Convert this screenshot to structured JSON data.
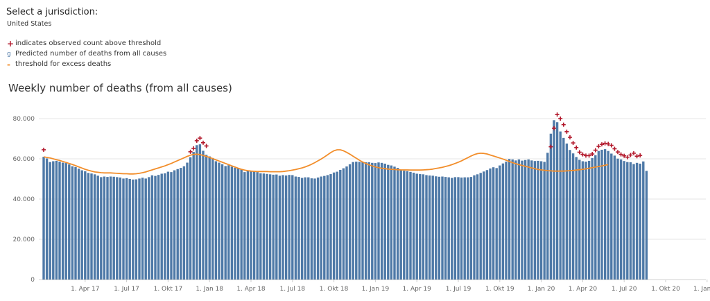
{
  "selector": {
    "title": "Select a jurisdiction:",
    "value": "United States"
  },
  "legend": {
    "items": [
      {
        "symbol": "+",
        "label": "indicates observed count above threshold"
      },
      {
        "symbol": "g",
        "label": "Predicted number of deaths from all causes"
      },
      {
        "symbol": "-",
        "label": "threshold for excess deaths"
      }
    ]
  },
  "colors": {
    "bar": "#4e79a7",
    "threshold": "#f28e2b",
    "marker": "#b2182b"
  },
  "chart_data": {
    "type": "bar",
    "title": "Weekly number of deaths (from all causes)",
    "xlabel": "",
    "ylabel": "",
    "ylim": [
      0,
      88000
    ],
    "yticks": [
      {
        "value": 0,
        "label": "0"
      },
      {
        "value": 20000,
        "label": "20.000"
      },
      {
        "value": 40000,
        "label": "40.000"
      },
      {
        "value": 60000,
        "label": "60.000"
      },
      {
        "value": 80000,
        "label": "80.000"
      }
    ],
    "xticks": [
      {
        "week": 13,
        "label": "1. Apr 17"
      },
      {
        "week": 26,
        "label": "1. Jul 17"
      },
      {
        "week": 39,
        "label": "1. Okt 17"
      },
      {
        "week": 52,
        "label": "1. Jan 18"
      },
      {
        "week": 65,
        "label": "1. Apr 18"
      },
      {
        "week": 78,
        "label": "1. Jul 18"
      },
      {
        "week": 91,
        "label": "1. Okt 18"
      },
      {
        "week": 104,
        "label": "1. Jan 19"
      },
      {
        "week": 117,
        "label": "1. Apr 19"
      },
      {
        "week": 130,
        "label": "1. Jul 19"
      },
      {
        "week": 143,
        "label": "1. Okt 19"
      },
      {
        "week": 156,
        "label": "1. Jan 20"
      },
      {
        "week": 169,
        "label": "1. Apr 20"
      },
      {
        "week": 182,
        "label": "1. Jul 20"
      },
      {
        "week": 195,
        "label": "1. Okt 20"
      },
      {
        "week": 208,
        "label": "1. Jan 21"
      }
    ],
    "series": [
      {
        "type": "bar",
        "values": [
          61000,
          60200,
          58400,
          58800,
          59000,
          58600,
          58100,
          57900,
          57200,
          56300,
          55900,
          55100,
          54300,
          53800,
          53000,
          52700,
          52300,
          51600,
          50900,
          51200,
          51000,
          51200,
          51100,
          50900,
          50700,
          50200,
          50400,
          50000,
          49700,
          49800,
          50200,
          50600,
          50200,
          50900,
          51800,
          51500,
          52000,
          52600,
          52800,
          53600,
          53400,
          54300,
          54900,
          55500,
          56300,
          58100,
          60800,
          63400,
          66800,
          67200,
          64000,
          62000,
          61200,
          60400,
          58800,
          58100,
          57300,
          56400,
          56800,
          56100,
          55600,
          55300,
          54700,
          53400,
          53900,
          54100,
          53800,
          53400,
          52800,
          52700,
          52500,
          52300,
          52100,
          52200,
          51600,
          51900,
          51700,
          52000,
          51900,
          51200,
          51000,
          50500,
          50800,
          50800,
          50300,
          50200,
          50700,
          51200,
          51500,
          51900,
          52400,
          53200,
          53600,
          54500,
          55300,
          56200,
          57300,
          58400,
          58600,
          58500,
          58400,
          58300,
          58300,
          58000,
          57900,
          58200,
          58000,
          57600,
          57000,
          56700,
          56100,
          55500,
          54600,
          54100,
          53900,
          53500,
          53100,
          52600,
          52400,
          52300,
          51900,
          51700,
          51600,
          51300,
          51100,
          51200,
          51000,
          50800,
          50500,
          50900,
          50900,
          50700,
          50800,
          50800,
          51000,
          51800,
          52300,
          53000,
          53700,
          54400,
          55200,
          55800,
          55400,
          56700,
          57700,
          58600,
          59900,
          59700,
          59200,
          59700,
          59100,
          59400,
          59700,
          59200,
          58900,
          59000,
          58800,
          58500,
          63000,
          72500,
          79200,
          78200,
          73600,
          70400,
          67600,
          64400,
          62700,
          60900,
          59500,
          58800,
          58600,
          59000,
          60400,
          61800,
          63900,
          64500,
          64800,
          63900,
          62600,
          61600,
          60100,
          59700,
          58900,
          58400,
          58300,
          57400,
          58000,
          57600,
          58700,
          54000
        ]
      },
      {
        "type": "line",
        "name": "threshold for excess deaths",
        "values": [
          61000,
          60700,
          60400,
          60000,
          59600,
          59200,
          58700,
          58200,
          57700,
          57200,
          56600,
          56000,
          55400,
          54800,
          54300,
          53900,
          53500,
          53300,
          53100,
          53000,
          53000,
          53000,
          52900,
          52800,
          52700,
          52600,
          52600,
          52500,
          52500,
          52600,
          52800,
          53100,
          53500,
          54000,
          54500,
          55000,
          55500,
          56000,
          56500,
          57100,
          57700,
          58400,
          59100,
          59800,
          60500,
          61200,
          61800,
          62200,
          62300,
          62100,
          61700,
          61200,
          60700,
          60100,
          59500,
          58900,
          58300,
          57700,
          57100,
          56500,
          55900,
          55300,
          54800,
          54400,
          54100,
          53900,
          53800,
          53700,
          53700,
          53700,
          53700,
          53600,
          53600,
          53600,
          53600,
          53700,
          53900,
          54100,
          54400,
          54700,
          55100,
          55500,
          56000,
          56600,
          57300,
          58100,
          59000,
          59900,
          60900,
          62000,
          63100,
          64000,
          64500,
          64500,
          64000,
          63200,
          62300,
          61300,
          60300,
          59300,
          58400,
          57700,
          57000,
          56500,
          56000,
          55600,
          55300,
          55100,
          54900,
          54800,
          54700,
          54600,
          54500,
          54500,
          54500,
          54400,
          54400,
          54400,
          54400,
          54500,
          54600,
          54700,
          54900,
          55200,
          55500,
          55800,
          56200,
          56600,
          57100,
          57700,
          58300,
          59000,
          59800,
          60600,
          61400,
          62100,
          62600,
          62800,
          62700,
          62400,
          61900,
          61400,
          60900,
          60400,
          59900,
          59300,
          58700,
          58100,
          57600,
          57100,
          56700,
          56300,
          55900,
          55500,
          55100,
          54700,
          54500,
          54300,
          54100,
          54000,
          53900,
          53900,
          53900,
          53900,
          54000,
          54100,
          54200,
          54400,
          54600,
          54800,
          55000,
          55300,
          55600,
          55900,
          56200,
          56500,
          56800,
          57100
        ]
      },
      {
        "type": "markers",
        "name": "indicates observed count above threshold",
        "points": [
          {
            "week": 0,
            "value": 64500
          },
          {
            "week": 46,
            "value": 63500
          },
          {
            "week": 47,
            "value": 65200
          },
          {
            "week": 48,
            "value": 69000
          },
          {
            "week": 49,
            "value": 70300
          },
          {
            "week": 50,
            "value": 68000
          },
          {
            "week": 51,
            "value": 66400
          },
          {
            "week": 159,
            "value": 66000
          },
          {
            "week": 160,
            "value": 75200
          },
          {
            "week": 161,
            "value": 82000
          },
          {
            "week": 162,
            "value": 80000
          },
          {
            "week": 163,
            "value": 77000
          },
          {
            "week": 164,
            "value": 73500
          },
          {
            "week": 165,
            "value": 70700
          },
          {
            "week": 166,
            "value": 67900
          },
          {
            "week": 167,
            "value": 65600
          },
          {
            "week": 168,
            "value": 63300
          },
          {
            "week": 169,
            "value": 62200
          },
          {
            "week": 170,
            "value": 61600
          },
          {
            "week": 171,
            "value": 61600
          },
          {
            "week": 172,
            "value": 62400
          },
          {
            "week": 173,
            "value": 64300
          },
          {
            "week": 174,
            "value": 66200
          },
          {
            "week": 175,
            "value": 67200
          },
          {
            "week": 176,
            "value": 67700
          },
          {
            "week": 177,
            "value": 67400
          },
          {
            "week": 178,
            "value": 66700
          },
          {
            "week": 179,
            "value": 65000
          },
          {
            "week": 180,
            "value": 63400
          },
          {
            "week": 181,
            "value": 62200
          },
          {
            "week": 182,
            "value": 61500
          },
          {
            "week": 183,
            "value": 60800
          },
          {
            "week": 184,
            "value": 61900
          },
          {
            "week": 185,
            "value": 62800
          },
          {
            "week": 186,
            "value": 61300
          },
          {
            "week": 187,
            "value": 61700
          }
        ]
      }
    ]
  }
}
